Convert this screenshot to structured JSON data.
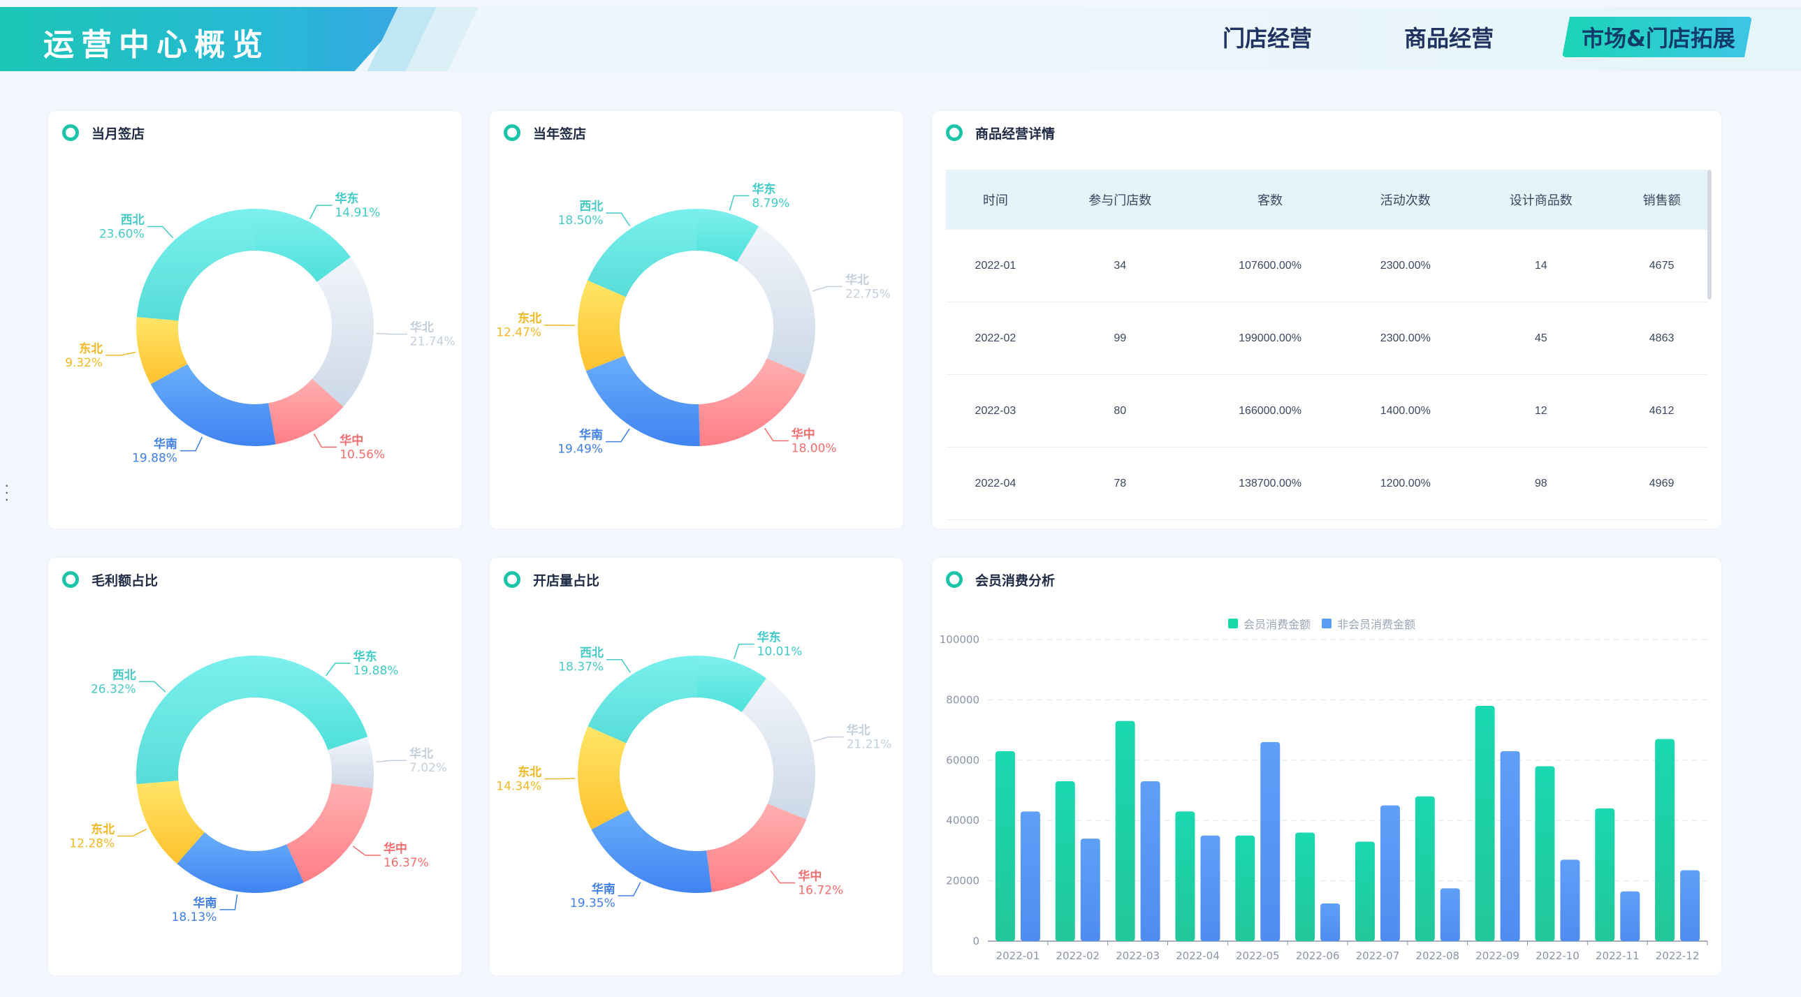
{
  "header": {
    "title": "运营中心概览",
    "nav": [
      {
        "label": "门店经营",
        "active": false
      },
      {
        "label": "商品经营",
        "active": false
      },
      {
        "label": "市场&门店拓展",
        "active": true
      }
    ]
  },
  "colors": {
    "华东": "#5ee7e2",
    "华北": "#dde6f2",
    "华中": "#ff8c8c",
    "华南": "#4a8ff6",
    "东北": "#ffcf3a",
    "西北": "#6ee3e0",
    "accent": "#1bc4a8",
    "member": "#1ad8aa",
    "nonmember": "#5b9cf7"
  },
  "donuts": [
    {
      "title": "当月签店",
      "chart_data": {
        "type": "pie",
        "slices": [
          {
            "name": "华东",
            "percent": "14.91%",
            "value": 14.91
          },
          {
            "name": "华北",
            "percent": "21.74%",
            "value": 21.74
          },
          {
            "name": "华中",
            "percent": "10.56%",
            "value": 10.56
          },
          {
            "name": "华南",
            "percent": "19.88%",
            "value": 19.88
          },
          {
            "name": "东北",
            "percent": "9.32%",
            "value": 9.32
          },
          {
            "name": "西北",
            "percent": "23.60%",
            "value": 23.6
          }
        ]
      }
    },
    {
      "title": "当年签店",
      "chart_data": {
        "type": "pie",
        "slices": [
          {
            "name": "华东",
            "percent": "8.79%",
            "value": 8.79
          },
          {
            "name": "华北",
            "percent": "22.75%",
            "value": 22.75
          },
          {
            "name": "华中",
            "percent": "18.00%",
            "value": 18.0
          },
          {
            "name": "华南",
            "percent": "19.49%",
            "value": 19.49
          },
          {
            "name": "东北",
            "percent": "12.47%",
            "value": 12.47
          },
          {
            "name": "西北",
            "percent": "18.50%",
            "value": 18.5
          }
        ]
      }
    },
    {
      "title": "毛利额占比",
      "chart_data": {
        "type": "pie",
        "slices": [
          {
            "name": "华东",
            "percent": "19.88%",
            "value": 19.88
          },
          {
            "name": "华北",
            "percent": "7.02%",
            "value": 7.02
          },
          {
            "name": "华中",
            "percent": "16.37%",
            "value": 16.37
          },
          {
            "name": "华南",
            "percent": "18.13%",
            "value": 18.13
          },
          {
            "name": "东北",
            "percent": "12.28%",
            "value": 12.28
          },
          {
            "name": "西北",
            "percent": "26.32%",
            "value": 26.32
          }
        ]
      }
    },
    {
      "title": "开店量占比",
      "chart_data": {
        "type": "pie",
        "slices": [
          {
            "name": "华东",
            "percent": "10.01%",
            "value": 10.01
          },
          {
            "name": "华北",
            "percent": "21.21%",
            "value": 21.21
          },
          {
            "name": "华中",
            "percent": "16.72%",
            "value": 16.72
          },
          {
            "name": "华南",
            "percent": "19.35%",
            "value": 19.35
          },
          {
            "name": "东北",
            "percent": "14.34%",
            "value": 14.34
          },
          {
            "name": "西北",
            "percent": "18.37%",
            "value": 18.37
          }
        ]
      }
    }
  ],
  "table": {
    "title": "商品经营详情",
    "columns": [
      "时间",
      "参与门店数",
      "客数",
      "活动次数",
      "设计商品数",
      "销售额"
    ],
    "rows": [
      [
        "2022-01",
        "34",
        "107600.00%",
        "2300.00%",
        "14",
        "4675"
      ],
      [
        "2022-02",
        "99",
        "199000.00%",
        "2300.00%",
        "45",
        "4863"
      ],
      [
        "2022-03",
        "80",
        "166000.00%",
        "1400.00%",
        "12",
        "4612"
      ],
      [
        "2022-04",
        "78",
        "138700.00%",
        "1200.00%",
        "98",
        "4969"
      ]
    ]
  },
  "bar_chart": {
    "title": "会员消费分析",
    "chart_data": {
      "type": "bar",
      "categories": [
        "2022-01",
        "2022-02",
        "2022-03",
        "2022-04",
        "2022-05",
        "2022-06",
        "2022-07",
        "2022-08",
        "2022-09",
        "2022-10",
        "2022-11",
        "2022-12"
      ],
      "series": [
        {
          "name": "会员消费金额",
          "values": [
            63000,
            53000,
            73000,
            43000,
            35000,
            36000,
            33000,
            48000,
            78000,
            58000,
            44000,
            67000
          ]
        },
        {
          "name": "非会员消费金额",
          "values": [
            43000,
            34000,
            53000,
            35000,
            66000,
            12500,
            45000,
            17500,
            63000,
            27000,
            16500,
            23500
          ]
        }
      ],
      "ylim": [
        0,
        100000
      ],
      "yticks": [
        "0",
        "20000",
        "40000",
        "60000",
        "80000",
        "100000"
      ],
      "legend_position": "top-center",
      "grid": true
    }
  }
}
